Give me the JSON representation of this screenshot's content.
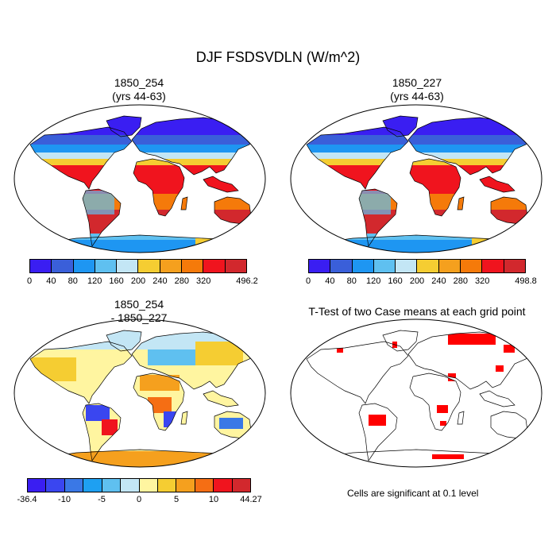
{
  "title": "DJF FSDSVDLN (W/m^2)",
  "panels": [
    {
      "title_line1": "1850_254",
      "title_line2": "(yrs 44-63)"
    },
    {
      "title_line1": "1850_227",
      "title_line2": "(yrs 44-63)"
    },
    {
      "title_line1": "1850_254",
      "title_line2": "- 1850_227"
    },
    {
      "title_line1": "T-Test of two Case means at each grid point"
    }
  ],
  "colorbars": {
    "cb1": {
      "colors": [
        "#3a1ef2",
        "#3a5fd9",
        "#1e96f2",
        "#5fc0f0",
        "#c3e6f5",
        "#f5cd32",
        "#f5a01e",
        "#f57a0a",
        "#f0141e",
        "#d2282d"
      ],
      "ticks": [
        "0",
        "40",
        "80",
        "120",
        "160",
        "200",
        "240",
        "280",
        "320",
        "496.2"
      ]
    },
    "cb2": {
      "colors": [
        "#3a1ef2",
        "#3a5fd9",
        "#1e96f2",
        "#5fc0f0",
        "#c3e6f5",
        "#f5cd32",
        "#f5a01e",
        "#f57a0a",
        "#f0141e",
        "#d2282d"
      ],
      "ticks": [
        "0",
        "40",
        "80",
        "120",
        "160",
        "200",
        "240",
        "280",
        "320",
        "498.8"
      ]
    },
    "cb3": {
      "colors": [
        "#3a1ef2",
        "#3a46f0",
        "#3a78e6",
        "#1ea0f2",
        "#5fc0f0",
        "#c3e6f5",
        "#fff5a0",
        "#f5cd32",
        "#f5a01e",
        "#f56e14",
        "#f0141e",
        "#d2282d"
      ],
      "ticks": [
        "-36.4",
        "-10",
        "-5",
        "0",
        "5",
        "10",
        "44.27"
      ]
    }
  },
  "significance_note": "Cells are significant at 0.1 level"
}
